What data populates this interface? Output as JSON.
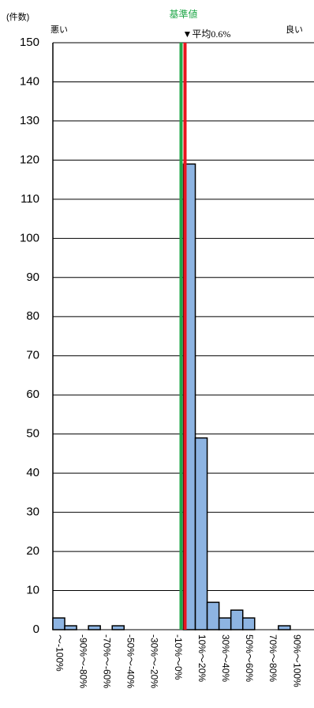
{
  "chart_data": {
    "type": "bar",
    "y_unit_label": "(件数)",
    "left_label": "悪い",
    "right_label": "良い",
    "reference_label": "基準値",
    "reference_color": "#22a84a",
    "mean_label": "▼平均0.6%",
    "mean_color": "#e8141e",
    "categories": [
      "〜-100%",
      null,
      "-90%〜-80%",
      null,
      "-70%〜-60%",
      null,
      "-50%〜-40%",
      null,
      "-30%〜-20%",
      null,
      "-10%〜0%",
      null,
      "10%〜20%",
      null,
      "30%〜40%",
      null,
      "50%〜60%",
      null,
      "70%〜80%",
      null,
      "90%〜100%",
      null
    ],
    "values": [
      3,
      1,
      0,
      1,
      0,
      1,
      0,
      0,
      0,
      0,
      0,
      119,
      49,
      7,
      3,
      5,
      3,
      0,
      0,
      1,
      0,
      0
    ],
    "color": "#8db4e2",
    "ylim": [
      0,
      150
    ],
    "yticks": [
      0,
      10,
      20,
      30,
      40,
      50,
      60,
      70,
      80,
      90,
      100,
      110,
      120,
      130,
      140,
      150
    ],
    "grid": true
  }
}
